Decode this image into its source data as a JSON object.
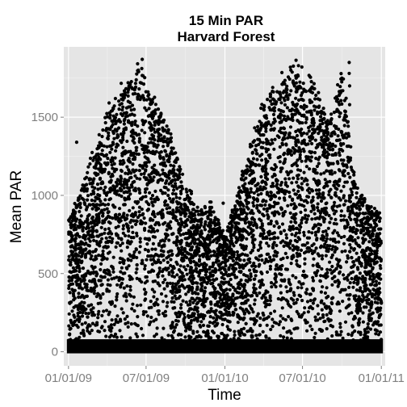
{
  "chart_data": {
    "type": "scatter",
    "title": "15 Min PAR",
    "subtitle": "Harvard Forest",
    "xlabel": "Time",
    "ylabel": "Mean PAR",
    "x_ticks": [
      "01/01/09",
      "07/01/09",
      "01/01/10",
      "07/01/10",
      "01/01/11"
    ],
    "y_ticks": [
      0,
      500,
      1000,
      1500
    ],
    "xlim": [
      "2008-12-21",
      "2011-01-10"
    ],
    "ylim": [
      -90,
      1950
    ],
    "grid": true,
    "legend": "none",
    "point_color": "#000000",
    "panel_background": "#e5e5e5",
    "upper_envelope": [
      {
        "date": "2009-01-01",
        "par": 850
      },
      {
        "date": "2009-02-01",
        "par": 1050
      },
      {
        "date": "2009-03-01",
        "par": 1300
      },
      {
        "date": "2009-04-01",
        "par": 1550
      },
      {
        "date": "2009-05-01",
        "par": 1700
      },
      {
        "date": "2009-06-01",
        "par": 1760
      },
      {
        "date": "2009-06-20",
        "par": 1870
      },
      {
        "date": "2009-07-01",
        "par": 1720
      },
      {
        "date": "2009-08-01",
        "par": 1600
      },
      {
        "date": "2009-09-01",
        "par": 1380
      },
      {
        "date": "2009-10-01",
        "par": 1100
      },
      {
        "date": "2009-11-01",
        "par": 900
      },
      {
        "date": "2009-12-01",
        "par": 950
      },
      {
        "date": "2010-01-01",
        "par": 750
      },
      {
        "date": "2010-02-01",
        "par": 1050
      },
      {
        "date": "2010-03-01",
        "par": 1350
      },
      {
        "date": "2010-04-01",
        "par": 1600
      },
      {
        "date": "2010-05-01",
        "par": 1750
      },
      {
        "date": "2010-06-01",
        "par": 1820
      },
      {
        "date": "2010-07-01",
        "par": 1860
      },
      {
        "date": "2010-08-01",
        "par": 1700
      },
      {
        "date": "2010-09-01",
        "par": 1450
      },
      {
        "date": "2010-10-01",
        "par": 1850
      },
      {
        "date": "2010-11-01",
        "par": 1100
      },
      {
        "date": "2010-12-01",
        "par": 950
      },
      {
        "date": "2011-01-01",
        "par": 880
      }
    ]
  }
}
